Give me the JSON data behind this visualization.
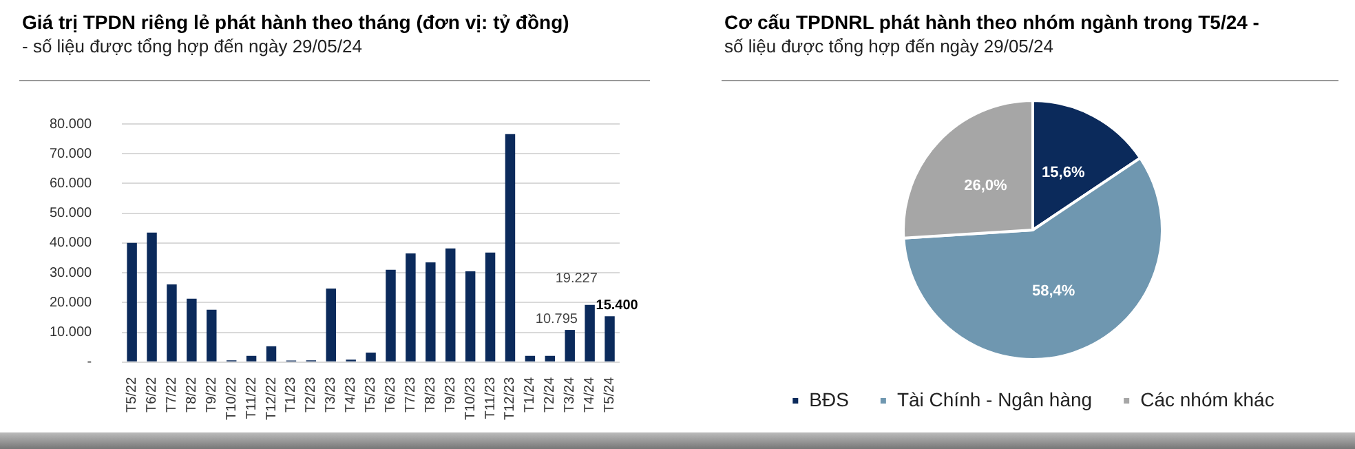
{
  "chart_data": [
    {
      "type": "bar",
      "title": "Giá trị TPDN riêng lẻ phát hành theo tháng (đơn vị: tỷ đồng)",
      "subtitle": "- số liệu được tổng hợp đến ngày 29/05/24",
      "categories": [
        "T5/22",
        "T6/22",
        "T7/22",
        "T8/22",
        "T9/22",
        "T10/22",
        "T11/22",
        "T12/22",
        "T1/23",
        "T2/23",
        "T3/23",
        "T4/23",
        "T5/23",
        "T6/23",
        "T7/23",
        "T8/23",
        "T9/23",
        "T10/23",
        "T11/23",
        "T12/23",
        "T1/24",
        "T2/24",
        "T3/24",
        "T4/24",
        "T5/24"
      ],
      "values": [
        40000,
        43500,
        26100,
        21300,
        17600,
        600,
        2100,
        5300,
        500,
        600,
        24700,
        800,
        3200,
        31000,
        36500,
        33500,
        38200,
        30500,
        36800,
        76600,
        2100,
        2100,
        10795,
        19227,
        15400
      ],
      "value_labels": [
        null,
        null,
        null,
        null,
        null,
        null,
        null,
        null,
        null,
        null,
        null,
        null,
        null,
        null,
        null,
        null,
        null,
        null,
        null,
        null,
        null,
        null,
        "10.795",
        "19.227",
        "15.400"
      ],
      "color": "#0b2a5b",
      "ylim": [
        0,
        80000
      ],
      "yticks": [
        {
          "value": 0,
          "label": "-"
        },
        {
          "value": 10000,
          "label": "10.000"
        },
        {
          "value": 20000,
          "label": "20.000"
        },
        {
          "value": 30000,
          "label": "30.000"
        },
        {
          "value": 40000,
          "label": "40.000"
        },
        {
          "value": 50000,
          "label": "50.000"
        },
        {
          "value": 60000,
          "label": "60.000"
        },
        {
          "value": 70000,
          "label": "70.000"
        },
        {
          "value": 80000,
          "label": "80.000"
        }
      ],
      "grid": "y",
      "legend": false
    },
    {
      "type": "pie",
      "title": "Cơ cấu TPDNRL phát hành theo nhóm ngành trong T5/24 -",
      "subtitle": "số liệu được tổng hợp đến ngày 29/05/24",
      "categories": [
        "BĐS",
        "Tài Chính - Ngân hàng",
        "Các nhóm khác"
      ],
      "values": [
        15.6,
        58.4,
        26.0
      ],
      "value_labels": [
        "15,6%",
        "58,4%",
        "26,0%"
      ],
      "colors": [
        "#0b2a5b",
        "#6f97b0",
        "#a6a6a6"
      ],
      "legend": "bottom"
    }
  ]
}
